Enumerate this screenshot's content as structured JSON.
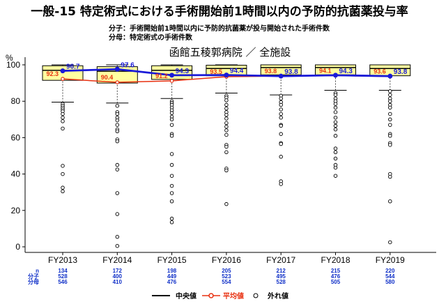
{
  "title": "一般-15 特定術式における手術開始前1時間以内の予防的抗菌薬投与率",
  "subtitle_numerator": "分子：手術開始前1時間以内に予防的抗菌薬が投与開始された手術件数",
  "subtitle_denominator": "分母：特定術式の手術件数",
  "hospital_label": "函館五稜郭病院 ／ 全施設",
  "y_unit": "%",
  "legend": {
    "median": "中央値",
    "mean": "平均値",
    "outlier": "外れ値"
  },
  "colors": {
    "box_fill": "#ffffa0",
    "median_line": "#1a1ad8",
    "mean_line": "#e83010",
    "count_text": "#1030c8"
  },
  "row_labels": [
    "n",
    "分子",
    "分母"
  ],
  "chart_data": {
    "type": "box",
    "ylim": [
      0,
      100
    ],
    "yticks": [
      0,
      20,
      40,
      60,
      80,
      100
    ],
    "categories": [
      "FY2013",
      "FY2014",
      "FY2015",
      "FY2016",
      "FY2017",
      "FY2018",
      "FY2019"
    ],
    "hospital_median_series": [
      96.7,
      97.6,
      94.3,
      94.4,
      93.8,
      94.3,
      93.8
    ],
    "hospital_mean_series": [
      92.3,
      90.4,
      91.2,
      93.5,
      93.8,
      94.1,
      93.6
    ],
    "boxes": [
      {
        "q1": 91.5,
        "median": 97.0,
        "q3": 99.5,
        "whisker_low": 79.5,
        "whisker_high": 100
      },
      {
        "q1": 90.0,
        "median": 96.5,
        "q3": 99.0,
        "whisker_low": 79.0,
        "whisker_high": 100
      },
      {
        "q1": 92.0,
        "median": 97.0,
        "q3": 99.5,
        "whisker_low": 81.5,
        "whisker_high": 100
      },
      {
        "q1": 94.0,
        "median": 98.0,
        "q3": 99.8,
        "whisker_low": 84.5,
        "whisker_high": 100
      },
      {
        "q1": 94.5,
        "median": 98.5,
        "q3": 100,
        "whisker_low": 83.5,
        "whisker_high": 100
      },
      {
        "q1": 94.5,
        "median": 98.5,
        "q3": 100,
        "whisker_low": 86.0,
        "whisker_high": 100
      },
      {
        "q1": 94.0,
        "median": 98.0,
        "q3": 100,
        "whisker_low": 86.0,
        "whisker_high": 100
      }
    ],
    "outliers": [
      [
        78.5,
        77.5,
        76.5,
        75.5,
        74.5,
        73,
        71,
        69,
        65,
        44.5,
        40,
        32.5,
        30.5
      ],
      [
        77.5,
        74,
        73,
        71,
        69.5,
        67,
        64.5,
        63.5,
        59,
        58,
        45,
        42.5,
        29.5,
        18,
        5.5,
        0.5
      ],
      [
        80,
        79,
        78,
        76.5,
        75,
        73.5,
        71.5,
        70,
        67,
        62,
        61,
        51,
        45,
        39,
        33.5,
        29.5,
        25,
        15.5,
        13.5
      ],
      [
        83,
        82,
        80.5,
        78,
        76,
        74,
        72.5,
        70.5,
        68,
        66,
        64,
        61.5,
        56,
        55,
        52,
        43,
        42,
        23.5
      ],
      [
        83,
        81.5,
        79.5,
        78,
        75.5,
        73,
        71,
        67,
        66.5,
        62,
        57,
        56.5,
        49.5,
        36,
        34.5
      ],
      [
        84.5,
        83.5,
        81.5,
        80,
        78.5,
        76.5,
        74,
        71,
        68.5,
        66.5,
        64.5,
        61,
        54,
        52,
        48.5,
        45,
        43.5,
        39
      ],
      [
        85.5,
        83.5,
        81.5,
        80,
        78,
        76.5,
        73,
        70,
        67,
        62,
        61,
        57,
        56,
        40,
        38.5,
        25,
        2.5
      ]
    ],
    "counts": {
      "n": [
        134,
        172,
        198,
        205,
        212,
        215,
        220
      ],
      "numerator": [
        528,
        400,
        449,
        523,
        495,
        476,
        544
      ],
      "denominator": [
        546,
        410,
        476,
        554,
        528,
        505,
        580
      ]
    }
  }
}
